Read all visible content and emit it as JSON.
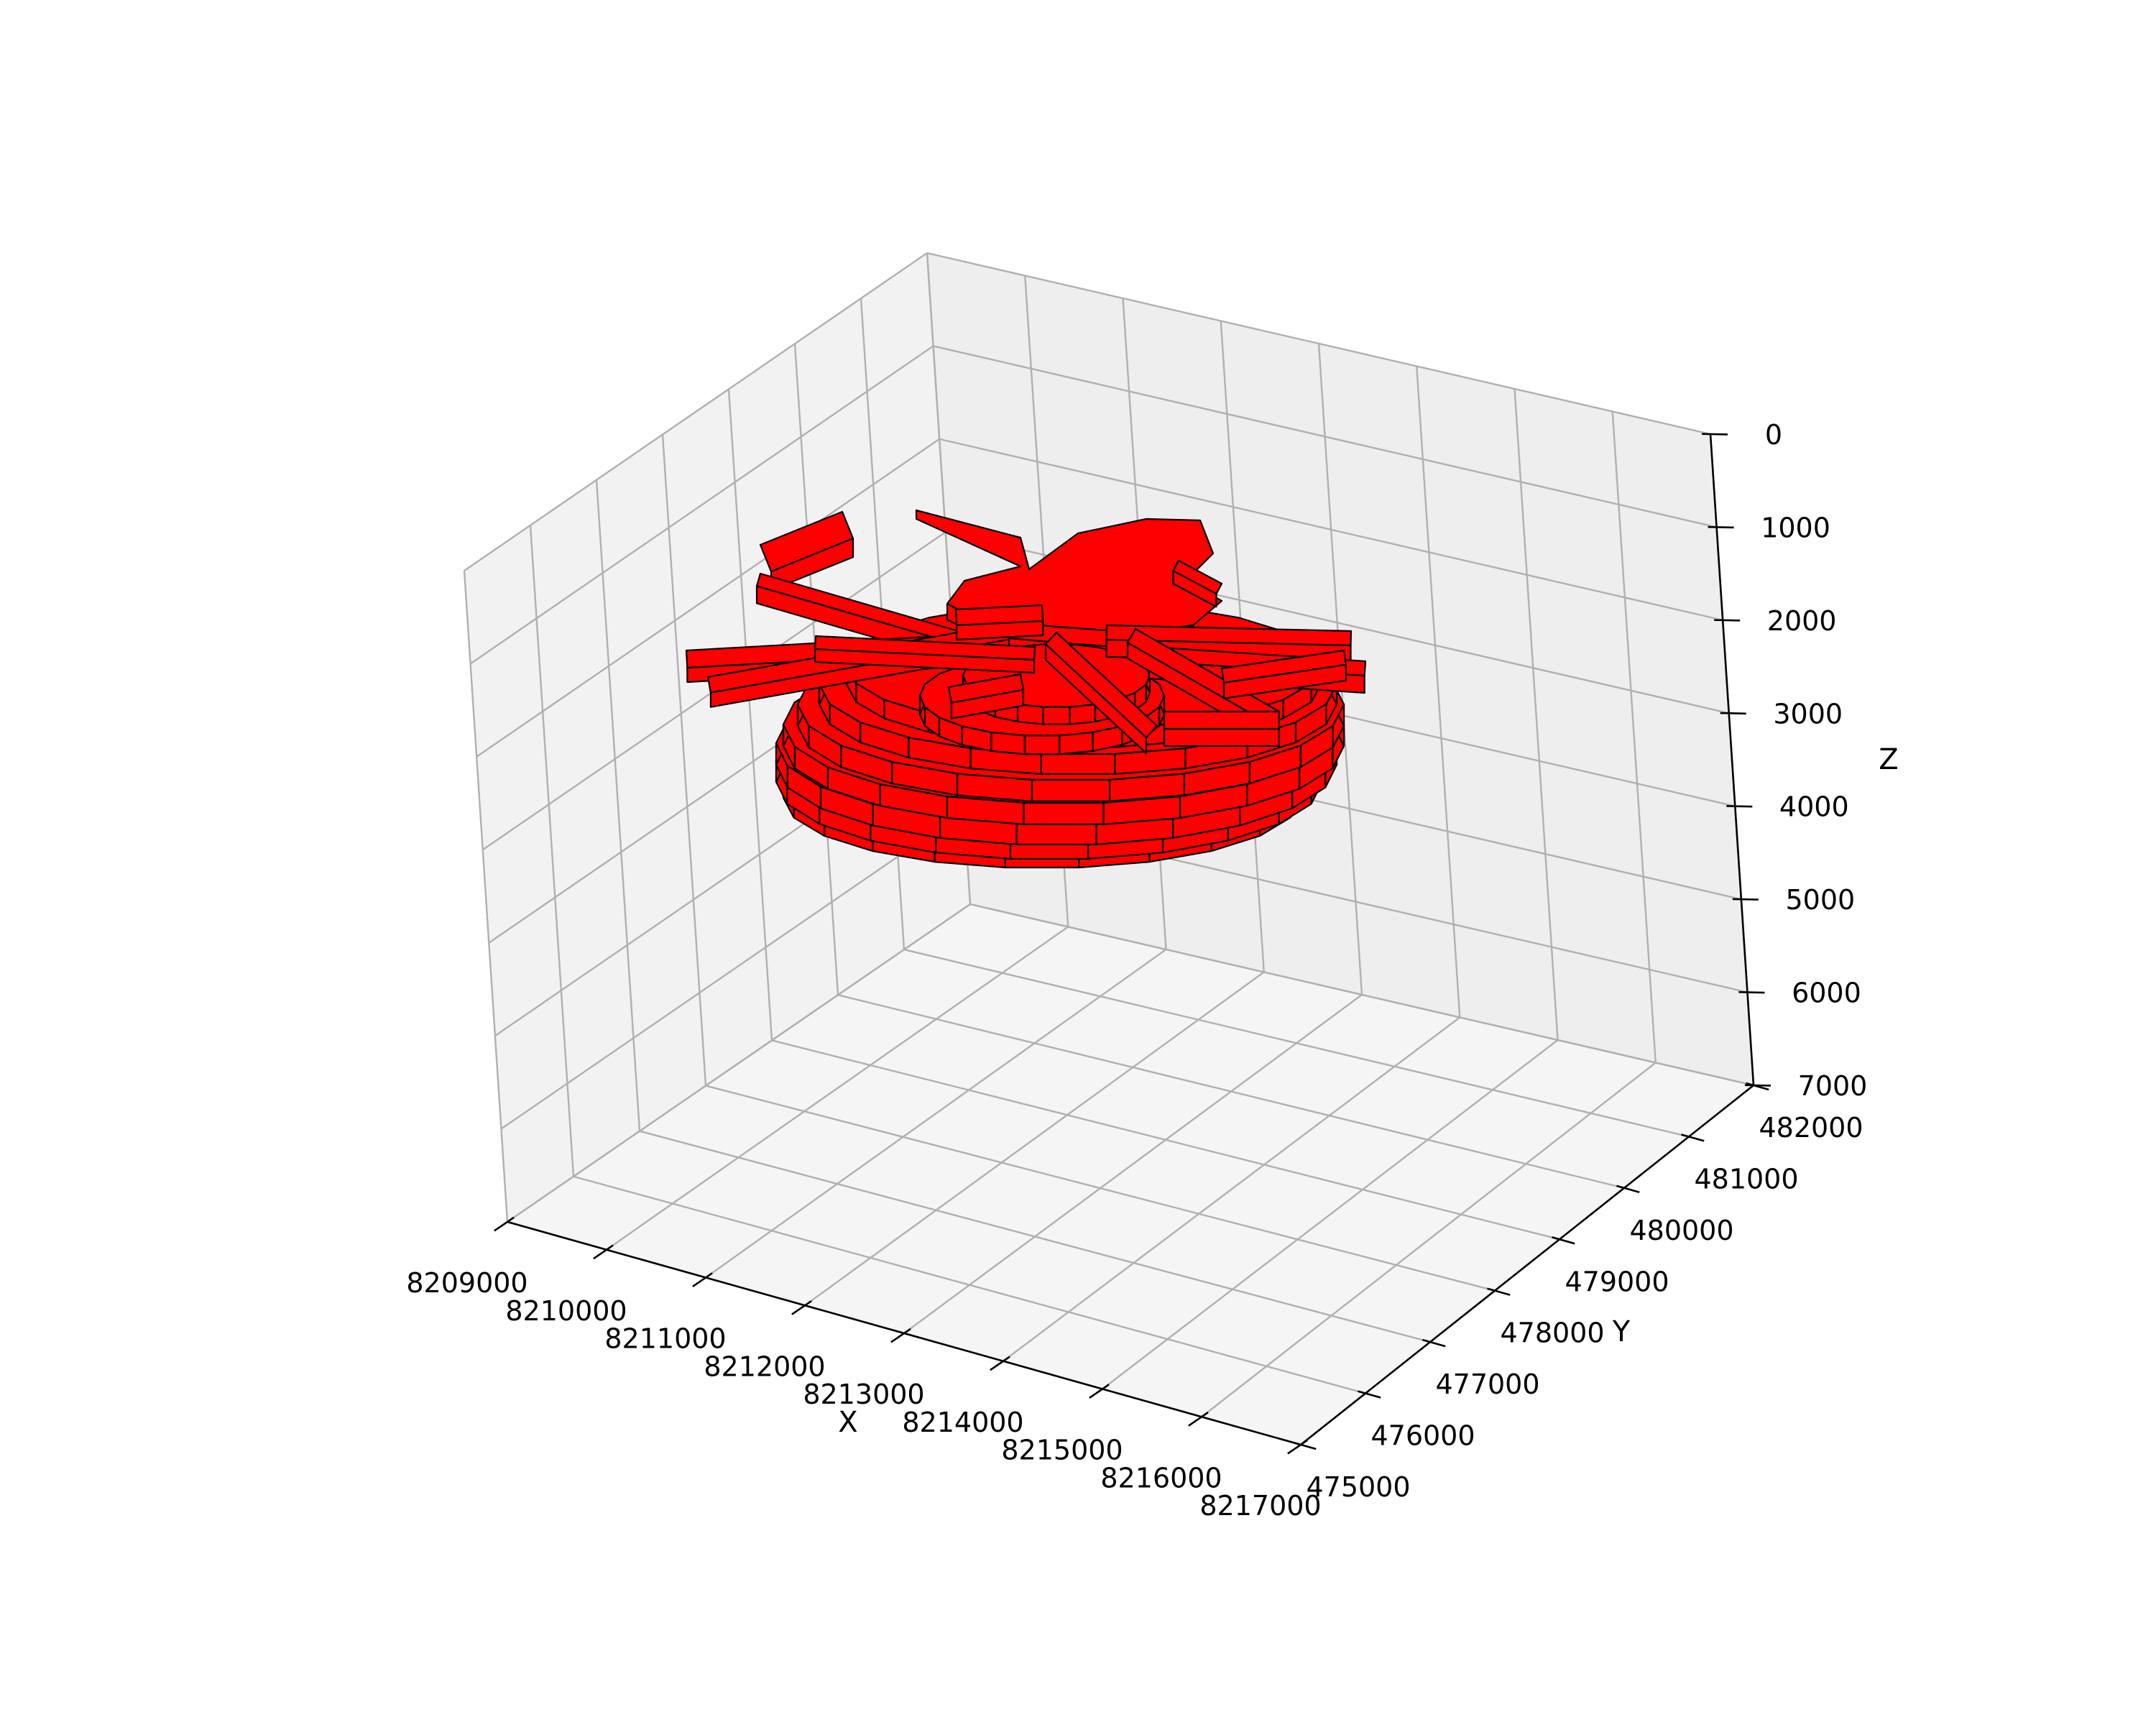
{
  "chart_data": {
    "type": "3d-solid",
    "title": "",
    "xlabel": "X",
    "ylabel": "Y",
    "zlabel": "Z",
    "xlim": [
      8209000,
      8217000
    ],
    "ylim": [
      475000,
      482000
    ],
    "zlim": [
      7000,
      0
    ],
    "z_inverted": true,
    "grid": true,
    "x_ticks": [
      "8209000",
      "8210000",
      "8211000",
      "8212000",
      "8213000",
      "8214000",
      "8215000",
      "8216000",
      "8217000"
    ],
    "y_ticks": [
      "475000",
      "476000",
      "477000",
      "478000",
      "479000",
      "480000",
      "481000",
      "482000"
    ],
    "z_ticks": [
      "0",
      "1000",
      "2000",
      "3000",
      "4000",
      "5000",
      "6000",
      "7000"
    ],
    "solid_color": "#ff0000",
    "edge_color": "#000000",
    "pane_color": "#f2f2f2"
  }
}
